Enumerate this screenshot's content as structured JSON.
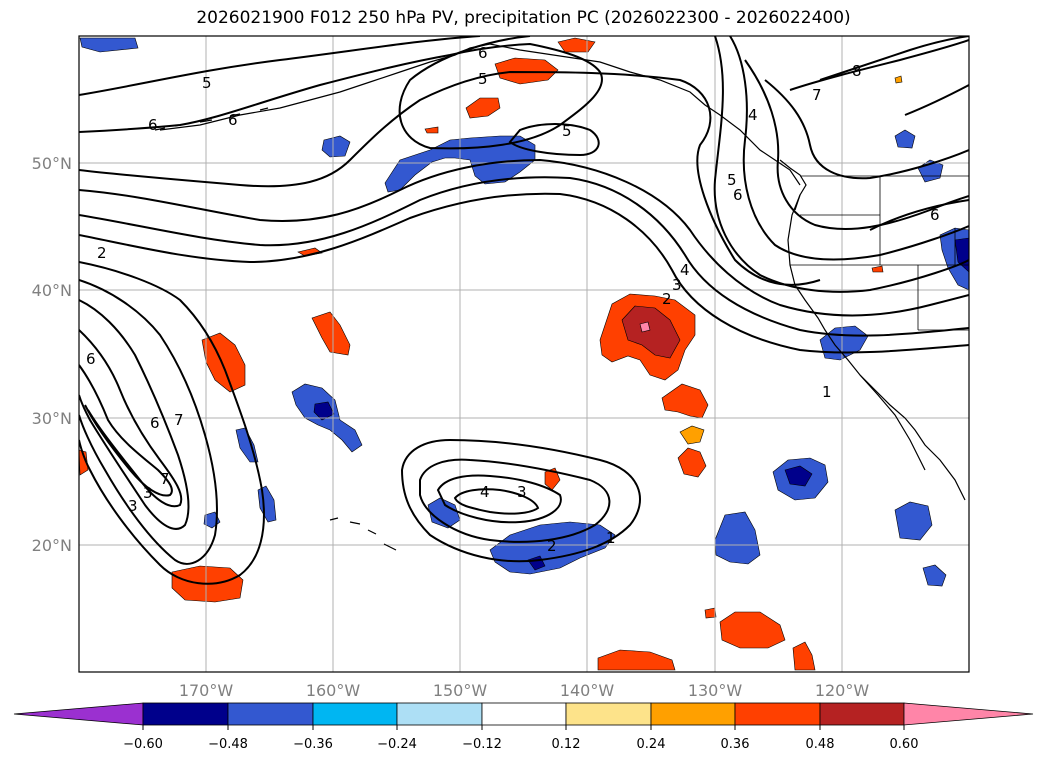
{
  "title": "2026021900 F012 250 hPa PV, precipitation PC (2026022300 - 2026022400)",
  "map": {
    "projection": "plate-carree",
    "lon_range": [
      -180,
      -110
    ],
    "lat_range": [
      10,
      60
    ],
    "gridlines": true,
    "lat_labels": [
      "50°N",
      "40°N",
      "30°N",
      "20°N"
    ],
    "lon_labels": [
      "170°W",
      "160°W",
      "150°W",
      "140°W",
      "130°W",
      "120°W"
    ],
    "pv_contour_labels": [
      "6",
      "5",
      "6",
      "5",
      "6",
      "5",
      "4",
      "5",
      "6",
      "7",
      "8",
      "6",
      "2",
      "4",
      "3",
      "2",
      "6",
      "6",
      "7",
      "7",
      "3",
      "3",
      "4",
      "3",
      "2",
      "1",
      "1"
    ]
  },
  "colorbar": {
    "extend": "both",
    "tick_labels": [
      "−0.60",
      "−0.48",
      "−0.36",
      "−0.24",
      "−0.12",
      "0.12",
      "0.24",
      "0.36",
      "0.48",
      "0.60"
    ],
    "colors": [
      "#9b30d0",
      "#00008b",
      "#3358d0",
      "#00b6f2",
      "#addff5",
      "#ffffff",
      "#fde38a",
      "#ffa000",
      "#ff4000",
      "#b52222",
      "#ff85a8"
    ]
  }
}
